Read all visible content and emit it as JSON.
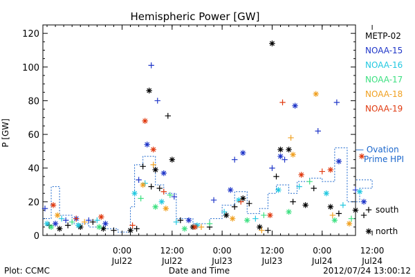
{
  "chart_data": {
    "type": "scatter",
    "title": "Hemispheric Power [GW]",
    "ylabel": "P [GW]",
    "xlabel": "Date and Time",
    "ylim": [
      0,
      125
    ],
    "yticks": [
      0,
      20,
      40,
      60,
      80,
      100,
      120
    ],
    "xlim": [
      "2012-07-21 05:00",
      "2012-07-24 08:00"
    ],
    "xticks": [
      {
        "t": "2012-07-22 00:00",
        "time": "0:00",
        "date": "Jul22"
      },
      {
        "t": "2012-07-22 12:00",
        "time": "12:00",
        "date": "Jul22"
      },
      {
        "t": "2012-07-23 00:00",
        "time": "0:00",
        "date": "Jul23"
      },
      {
        "t": "2012-07-23 12:00",
        "time": "12:00",
        "date": "Jul23"
      },
      {
        "t": "2012-07-24 00:00",
        "time": "0:00",
        "date": "Jul24"
      },
      {
        "t": "2012-07-24 12:00",
        "time": "12:00",
        "date": "Jul24"
      }
    ],
    "series": [
      {
        "name": "METP-02",
        "color": "#000000",
        "points": [
          {
            "t": "2012-07-21 06:30",
            "y": 6,
            "m": "+"
          },
          {
            "t": "2012-07-21 09:00",
            "y": 4,
            "m": "*"
          },
          {
            "t": "2012-07-21 11:00",
            "y": 6,
            "m": "+"
          },
          {
            "t": "2012-07-21 14:00",
            "y": 5,
            "m": "*"
          },
          {
            "t": "2012-07-21 17:00",
            "y": 8,
            "m": "+"
          },
          {
            "t": "2012-07-21 19:30",
            "y": 4,
            "m": "*"
          },
          {
            "t": "2012-07-21 22:00",
            "y": 3,
            "m": "+"
          },
          {
            "t": "2012-07-22 02:00",
            "y": 3,
            "m": "*"
          },
          {
            "t": "2012-07-22 03:30",
            "y": 4,
            "m": "+"
          },
          {
            "t": "2012-07-22 05:00",
            "y": 41,
            "m": "+"
          },
          {
            "t": "2012-07-22 06:30",
            "y": 86,
            "m": "*"
          },
          {
            "t": "2012-07-22 07:00",
            "y": 29,
            "m": "+"
          },
          {
            "t": "2012-07-22 08:00",
            "y": 39,
            "m": "*"
          },
          {
            "t": "2012-07-22 09:00",
            "y": 28,
            "m": "+"
          },
          {
            "t": "2012-07-22 11:00",
            "y": 71,
            "m": "+"
          },
          {
            "t": "2012-07-22 12:00",
            "y": 45,
            "m": "*"
          },
          {
            "t": "2012-07-22 14:00",
            "y": 9,
            "m": "+"
          },
          {
            "t": "2012-07-22 17:00",
            "y": 5,
            "m": "*"
          },
          {
            "t": "2012-07-22 21:00",
            "y": 5,
            "m": "+"
          },
          {
            "t": "2012-07-23 01:00",
            "y": 12,
            "m": "*"
          },
          {
            "t": "2012-07-23 03:00",
            "y": 17,
            "m": "+"
          },
          {
            "t": "2012-07-23 05:00",
            "y": 22,
            "m": "*"
          },
          {
            "t": "2012-07-23 06:30",
            "y": 19,
            "m": "+"
          },
          {
            "t": "2012-07-23 09:00",
            "y": 5,
            "m": "*"
          },
          {
            "t": "2012-07-23 11:00",
            "y": 3,
            "m": "+"
          },
          {
            "t": "2012-07-23 12:00",
            "y": 114,
            "m": "*"
          },
          {
            "t": "2012-07-23 13:00",
            "y": 35,
            "m": "+"
          },
          {
            "t": "2012-07-23 14:00",
            "y": 51,
            "m": "*"
          },
          {
            "t": "2012-07-23 16:00",
            "y": 51,
            "m": "*"
          },
          {
            "t": "2012-07-23 17:00",
            "y": 20,
            "m": "+"
          },
          {
            "t": "2012-07-23 20:00",
            "y": 18,
            "m": "*"
          },
          {
            "t": "2012-07-23 22:00",
            "y": 28,
            "m": "+"
          },
          {
            "t": "2012-07-24 02:00",
            "y": 17,
            "m": "*"
          },
          {
            "t": "2012-07-24 04:00",
            "y": 13,
            "m": "+"
          },
          {
            "t": "2012-07-24 08:00",
            "y": 15,
            "m": "*"
          },
          {
            "t": "2012-07-24 10:00",
            "y": 12,
            "m": "+"
          }
        ]
      },
      {
        "name": "NOAA-15",
        "color": "#1e35c8",
        "points": [
          {
            "t": "2012-07-21 05:30",
            "y": 16,
            "m": "+"
          },
          {
            "t": "2012-07-21 08:00",
            "y": 7,
            "m": "*"
          },
          {
            "t": "2012-07-21 10:30",
            "y": 9,
            "m": "+"
          },
          {
            "t": "2012-07-21 13:00",
            "y": 10,
            "m": "*"
          },
          {
            "t": "2012-07-21 16:00",
            "y": 9,
            "m": "+"
          },
          {
            "t": "2012-07-21 20:00",
            "y": 7,
            "m": "*"
          },
          {
            "t": "2012-07-22 04:00",
            "y": 33,
            "m": "+"
          },
          {
            "t": "2012-07-22 06:00",
            "y": 54,
            "m": "*"
          },
          {
            "t": "2012-07-22 07:00",
            "y": 101,
            "m": "+"
          },
          {
            "t": "2012-07-22 08:30",
            "y": 80,
            "m": "+"
          },
          {
            "t": "2012-07-22 10:00",
            "y": 37,
            "m": "*"
          },
          {
            "t": "2012-07-22 12:30",
            "y": 23,
            "m": "+"
          },
          {
            "t": "2012-07-22 16:00",
            "y": 9,
            "m": "*"
          },
          {
            "t": "2012-07-22 22:00",
            "y": 21,
            "m": "+"
          },
          {
            "t": "2012-07-23 02:00",
            "y": 27,
            "m": "*"
          },
          {
            "t": "2012-07-23 03:00",
            "y": 45,
            "m": "+"
          },
          {
            "t": "2012-07-23 05:00",
            "y": 49,
            "m": "*"
          },
          {
            "t": "2012-07-23 12:00",
            "y": 40,
            "m": "+"
          },
          {
            "t": "2012-07-23 14:00",
            "y": 47,
            "m": "*"
          },
          {
            "t": "2012-07-23 15:00",
            "y": 45,
            "m": "+"
          },
          {
            "t": "2012-07-23 17:30",
            "y": 77,
            "m": "*"
          },
          {
            "t": "2012-07-23 23:00",
            "y": 62,
            "m": "+"
          },
          {
            "t": "2012-07-24 03:30",
            "y": 79,
            "m": "+"
          },
          {
            "t": "2012-07-24 04:00",
            "y": 44,
            "m": "*"
          },
          {
            "t": "2012-07-24 08:00",
            "y": 27,
            "m": "+"
          },
          {
            "t": "2012-07-24 10:00",
            "y": 20,
            "m": "*"
          }
        ]
      },
      {
        "name": "NOAA-16",
        "color": "#22c8e0",
        "points": [
          {
            "t": "2012-07-21 06:00",
            "y": 7,
            "m": "*"
          },
          {
            "t": "2012-07-21 09:30",
            "y": 10,
            "m": "+"
          },
          {
            "t": "2012-07-21 13:30",
            "y": 6,
            "m": "*"
          },
          {
            "t": "2012-07-21 18:00",
            "y": 9,
            "m": "+"
          },
          {
            "t": "2012-07-22 03:00",
            "y": 25,
            "m": "*"
          },
          {
            "t": "2012-07-22 05:30",
            "y": 31,
            "m": "+"
          },
          {
            "t": "2012-07-22 09:30",
            "y": 20,
            "m": "*"
          },
          {
            "t": "2012-07-22 13:00",
            "y": 8,
            "m": "+"
          },
          {
            "t": "2012-07-22 18:00",
            "y": 6,
            "m": "*"
          },
          {
            "t": "2012-07-23 00:30",
            "y": 14,
            "m": "+"
          },
          {
            "t": "2012-07-23 04:00",
            "y": 21,
            "m": "*"
          },
          {
            "t": "2012-07-23 08:00",
            "y": 10,
            "m": "+"
          },
          {
            "t": "2012-07-23 13:30",
            "y": 27,
            "m": "*"
          },
          {
            "t": "2012-07-23 18:30",
            "y": 29,
            "m": "+"
          },
          {
            "t": "2012-07-24 01:00",
            "y": 25,
            "m": "*"
          },
          {
            "t": "2012-07-24 05:00",
            "y": 18,
            "m": "+"
          },
          {
            "t": "2012-07-24 09:00",
            "y": 26,
            "m": "*"
          }
        ]
      },
      {
        "name": "NOAA-17",
        "color": "#3ce080",
        "points": [
          {
            "t": "2012-07-21 07:00",
            "y": 5,
            "m": "*"
          },
          {
            "t": "2012-07-21 12:00",
            "y": 8,
            "m": "+"
          },
          {
            "t": "2012-07-21 18:30",
            "y": 5,
            "m": "*"
          },
          {
            "t": "2012-07-22 04:30",
            "y": 22,
            "m": "+"
          },
          {
            "t": "2012-07-22 08:00",
            "y": 17,
            "m": "*"
          },
          {
            "t": "2012-07-22 11:30",
            "y": 24,
            "m": "+"
          },
          {
            "t": "2012-07-22 15:00",
            "y": 4,
            "m": "*"
          },
          {
            "t": "2012-07-22 21:00",
            "y": 7,
            "m": "+"
          },
          {
            "t": "2012-07-23 06:00",
            "y": 9,
            "m": "*"
          },
          {
            "t": "2012-07-23 10:00",
            "y": 12,
            "m": "+"
          },
          {
            "t": "2012-07-23 16:00",
            "y": 14,
            "m": "*"
          },
          {
            "t": "2012-07-23 21:00",
            "y": 32,
            "m": "+"
          },
          {
            "t": "2012-07-24 03:00",
            "y": 9,
            "m": "*"
          },
          {
            "t": "2012-07-24 07:00",
            "y": 10,
            "m": "+"
          }
        ]
      },
      {
        "name": "NOAA-18",
        "color": "#f0a020",
        "points": [
          {
            "t": "2012-07-21 08:30",
            "y": 12,
            "m": "*"
          },
          {
            "t": "2012-07-21 15:00",
            "y": 8,
            "m": "+"
          },
          {
            "t": "2012-07-22 05:00",
            "y": 30,
            "m": "*"
          },
          {
            "t": "2012-07-22 07:30",
            "y": 42,
            "m": "+"
          },
          {
            "t": "2012-07-22 10:30",
            "y": 16,
            "m": "*"
          },
          {
            "t": "2012-07-22 19:00",
            "y": 5,
            "m": "+"
          },
          {
            "t": "2012-07-23 02:30",
            "y": 10,
            "m": "*"
          },
          {
            "t": "2012-07-23 09:30",
            "y": 3,
            "m": "+"
          },
          {
            "t": "2012-07-23 16:30",
            "y": 58,
            "m": "+"
          },
          {
            "t": "2012-07-23 17:00",
            "y": 48,
            "m": "*"
          },
          {
            "t": "2012-07-23 22:30",
            "y": 84,
            "m": "*"
          },
          {
            "t": "2012-07-24 02:30",
            "y": 12,
            "m": "+"
          },
          {
            "t": "2012-07-24 06:30",
            "y": 7,
            "m": "*"
          }
        ]
      },
      {
        "name": "NOAA-19",
        "color": "#e03a10",
        "points": [
          {
            "t": "2012-07-21 07:30",
            "y": 18,
            "m": "*"
          },
          {
            "t": "2012-07-21 13:00",
            "y": 10,
            "m": "+"
          },
          {
            "t": "2012-07-21 19:00",
            "y": 11,
            "m": "*"
          },
          {
            "t": "2012-07-22 02:30",
            "y": 6,
            "m": "+"
          },
          {
            "t": "2012-07-22 05:30",
            "y": 68,
            "m": "*"
          },
          {
            "t": "2012-07-22 07:30",
            "y": 51,
            "m": "*"
          },
          {
            "t": "2012-07-22 10:00",
            "y": 26,
            "m": "+"
          },
          {
            "t": "2012-07-22 17:30",
            "y": 5,
            "m": "*"
          },
          {
            "t": "2012-07-23 04:30",
            "y": 20,
            "m": "+"
          },
          {
            "t": "2012-07-23 11:30",
            "y": 12,
            "m": "*"
          },
          {
            "t": "2012-07-23 14:30",
            "y": 79,
            "m": "+"
          },
          {
            "t": "2012-07-23 19:00",
            "y": 36,
            "m": "*"
          },
          {
            "t": "2012-07-24 00:00",
            "y": 38,
            "m": "+"
          },
          {
            "t": "2012-07-24 02:00",
            "y": 39,
            "m": "*"
          },
          {
            "t": "2012-07-24 09:30",
            "y": 47,
            "m": "*"
          }
        ]
      }
    ],
    "ovation": {
      "label_line1": "— Ovation",
      "label_line2": "Prime HPI",
      "color": "#1a66cc",
      "points": [
        {
          "t": "2012-07-21 05:00",
          "y": 10
        },
        {
          "t": "2012-07-21 07:00",
          "y": 29
        },
        {
          "t": "2012-07-21 09:00",
          "y": 12
        },
        {
          "t": "2012-07-21 12:00",
          "y": 7
        },
        {
          "t": "2012-07-21 16:00",
          "y": 5
        },
        {
          "t": "2012-07-21 20:00",
          "y": 4
        },
        {
          "t": "2012-07-21 23:00",
          "y": 2
        },
        {
          "t": "2012-07-22 02:00",
          "y": 17
        },
        {
          "t": "2012-07-22 03:00",
          "y": 42
        },
        {
          "t": "2012-07-22 05:00",
          "y": 47
        },
        {
          "t": "2012-07-22 08:00",
          "y": 30
        },
        {
          "t": "2012-07-22 10:00",
          "y": 25
        },
        {
          "t": "2012-07-22 13:00",
          "y": 10
        },
        {
          "t": "2012-07-22 17:00",
          "y": 7
        },
        {
          "t": "2012-07-22 21:00",
          "y": 10
        },
        {
          "t": "2012-07-23 00:00",
          "y": 18
        },
        {
          "t": "2012-07-23 03:00",
          "y": 26
        },
        {
          "t": "2012-07-23 06:00",
          "y": 13
        },
        {
          "t": "2012-07-23 09:00",
          "y": 16
        },
        {
          "t": "2012-07-23 11:00",
          "y": 25
        },
        {
          "t": "2012-07-23 13:00",
          "y": 30
        },
        {
          "t": "2012-07-23 16:00",
          "y": 25
        },
        {
          "t": "2012-07-23 18:00",
          "y": 32
        },
        {
          "t": "2012-07-23 21:00",
          "y": 34
        },
        {
          "t": "2012-07-24 00:00",
          "y": 32
        },
        {
          "t": "2012-07-24 03:00",
          "y": 52
        },
        {
          "t": "2012-07-24 06:00",
          "y": 20
        },
        {
          "t": "2012-07-24 09:00",
          "y": 28
        },
        {
          "t": "2012-07-24 12:00",
          "y": 33
        }
      ]
    },
    "marker_legend": [
      {
        "symbol": "+",
        "label": "south"
      },
      {
        "symbol": "*",
        "label": "north"
      }
    ]
  },
  "footer": {
    "plot_credit": "Plot: CCMC",
    "axis_caption": "Date and Time",
    "timestamp": "2012/07/24 13:00:12"
  }
}
